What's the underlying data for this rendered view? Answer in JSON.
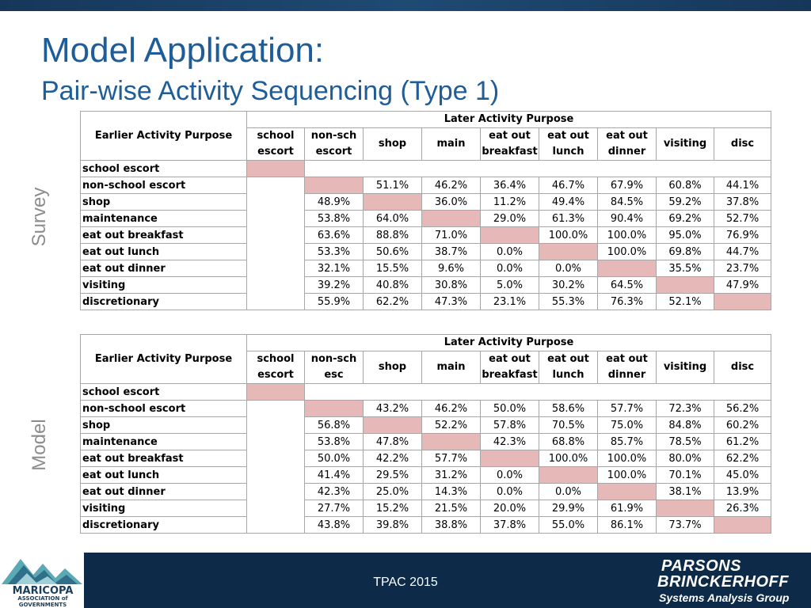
{
  "slide": {
    "title": "Model Application:",
    "subtitle": "Pair-wise Activity Sequencing (Type 1)",
    "survey_label": "Survey",
    "model_label": "Model"
  },
  "survey_table": {
    "group_header": "Later Activity Purpose",
    "row_header": "Earlier Activity Purpose",
    "columns": [
      [
        "school",
        "escort"
      ],
      [
        "non-sch",
        "escort"
      ],
      [
        "shop"
      ],
      [
        "main"
      ],
      [
        "eat out",
        "breakfast"
      ],
      [
        "eat out",
        "lunch"
      ],
      [
        "eat out",
        "dinner"
      ],
      [
        "visiting"
      ],
      [
        "disc"
      ]
    ],
    "rows": [
      {
        "label": "school escort",
        "values": []
      },
      {
        "label": "non-school escort",
        "values": [
          "",
          "",
          "51.1%",
          "46.2%",
          "36.4%",
          "46.7%",
          "67.9%",
          "60.8%",
          "44.1%"
        ]
      },
      {
        "label": "shop",
        "values": [
          "",
          "48.9%",
          "",
          "36.0%",
          "11.2%",
          "49.4%",
          "84.5%",
          "59.2%",
          "37.8%"
        ]
      },
      {
        "label": "maintenance",
        "values": [
          "",
          "53.8%",
          "64.0%",
          "",
          "29.0%",
          "61.3%",
          "90.4%",
          "69.2%",
          "52.7%"
        ]
      },
      {
        "label": "eat out breakfast",
        "values": [
          "",
          "63.6%",
          "88.8%",
          "71.0%",
          "",
          "100.0%",
          "100.0%",
          "95.0%",
          "76.9%"
        ]
      },
      {
        "label": "eat out lunch",
        "values": [
          "",
          "53.3%",
          "50.6%",
          "38.7%",
          "0.0%",
          "",
          "100.0%",
          "69.8%",
          "44.7%"
        ]
      },
      {
        "label": "eat out dinner",
        "values": [
          "",
          "32.1%",
          "15.5%",
          "9.6%",
          "0.0%",
          "0.0%",
          "",
          "35.5%",
          "23.7%"
        ]
      },
      {
        "label": "visiting",
        "values": [
          "",
          "39.2%",
          "40.8%",
          "30.8%",
          "5.0%",
          "30.2%",
          "64.5%",
          "",
          "47.9%"
        ]
      },
      {
        "label": "discretionary",
        "values": [
          "",
          "55.9%",
          "62.2%",
          "47.3%",
          "23.1%",
          "55.3%",
          "76.3%",
          "52.1%",
          ""
        ]
      }
    ]
  },
  "model_table": {
    "group_header": "Later Activity Purpose",
    "row_header": "Earlier Activity Purpose",
    "columns": [
      [
        "school",
        "escort"
      ],
      [
        "non-sch",
        "esc"
      ],
      [
        "shop"
      ],
      [
        "main"
      ],
      [
        "eat out",
        "breakfast"
      ],
      [
        "eat out",
        "lunch"
      ],
      [
        "eat out",
        "dinner"
      ],
      [
        "visiting"
      ],
      [
        "disc"
      ]
    ],
    "rows": [
      {
        "label": "school escort",
        "values": []
      },
      {
        "label": "non-school escort",
        "values": [
          "",
          "",
          "43.2%",
          "46.2%",
          "50.0%",
          "58.6%",
          "57.7%",
          "72.3%",
          "56.2%"
        ]
      },
      {
        "label": "shop",
        "values": [
          "",
          "56.8%",
          "",
          "52.2%",
          "57.8%",
          "70.5%",
          "75.0%",
          "84.8%",
          "60.2%"
        ]
      },
      {
        "label": "maintenance",
        "values": [
          "",
          "53.8%",
          "47.8%",
          "",
          "42.3%",
          "68.8%",
          "85.7%",
          "78.5%",
          "61.2%"
        ]
      },
      {
        "label": "eat out breakfast",
        "values": [
          "",
          "50.0%",
          "42.2%",
          "57.7%",
          "",
          "100.0%",
          "100.0%",
          "80.0%",
          "62.2%"
        ]
      },
      {
        "label": "eat out lunch",
        "values": [
          "",
          "41.4%",
          "29.5%",
          "31.2%",
          "0.0%",
          "",
          "100.0%",
          "70.1%",
          "45.0%"
        ]
      },
      {
        "label": "eat out dinner",
        "values": [
          "",
          "42.3%",
          "25.0%",
          "14.3%",
          "0.0%",
          "0.0%",
          "",
          "38.1%",
          "13.9%"
        ]
      },
      {
        "label": "visiting",
        "values": [
          "",
          "27.7%",
          "15.2%",
          "21.5%",
          "20.0%",
          "29.9%",
          "61.9%",
          "",
          "26.3%"
        ]
      },
      {
        "label": "discretionary",
        "values": [
          "",
          "43.8%",
          "39.8%",
          "38.8%",
          "37.8%",
          "55.0%",
          "86.1%",
          "73.7%",
          ""
        ]
      }
    ]
  },
  "footer": {
    "center_text": "TPAC 2015",
    "mag_line1": "MARICOPA",
    "mag_line2": "ASSOCIATION of",
    "mag_line3": "GOVERNMENTS",
    "pb_line1": "PARSONS",
    "pb_line2": "BRINCKERHOFF",
    "pb_line3": "Systems Analysis Group"
  },
  "colors": {
    "title": "#1f5d99",
    "diagonal_highlight": "#e6b8b7",
    "footer_bg": "#0d2a48"
  }
}
